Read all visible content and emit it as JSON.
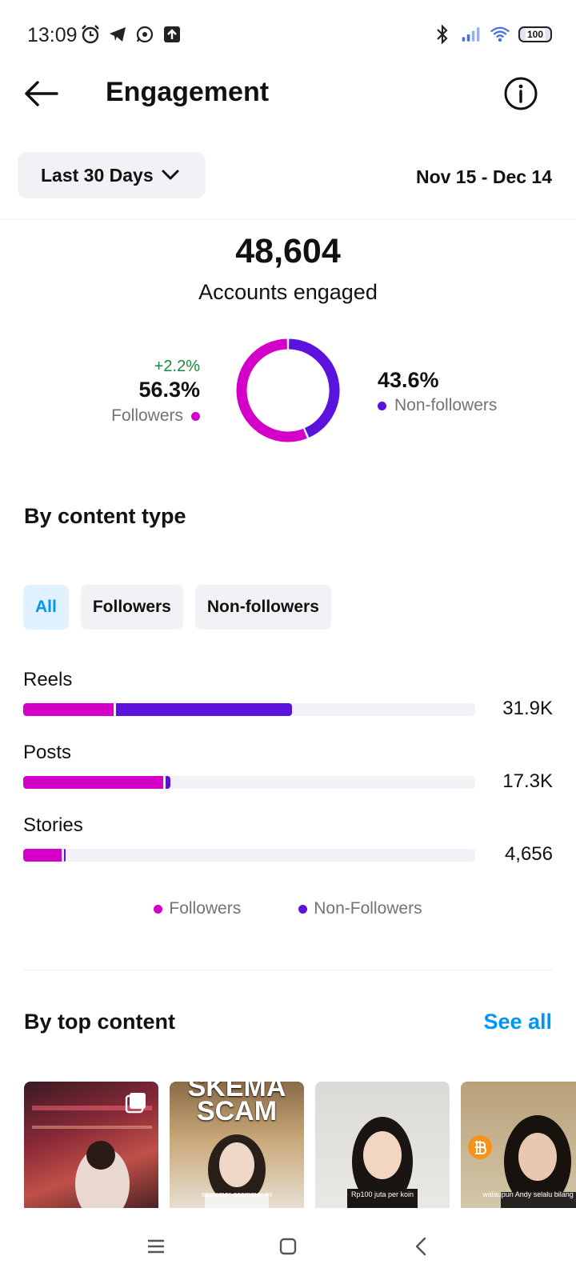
{
  "status_bar": {
    "time": "13:09",
    "battery": "100",
    "icons": [
      "alarm-icon",
      "telegram-icon",
      "whatsapp-icon",
      "upload-icon",
      "bluetooth-icon",
      "signal-icon",
      "wifi-icon",
      "battery-icon"
    ]
  },
  "header": {
    "title": "Engagement",
    "back_icon": "arrow-left-icon",
    "info_icon": "info-icon"
  },
  "filter": {
    "range_label": "Last 30 Days",
    "date_range": "Nov 15 - Dec 14"
  },
  "summary": {
    "total": "48,604",
    "total_label": "Accounts engaged",
    "followers_change": "+2.2%",
    "followers_pct": "56.3%",
    "followers_label": "Followers",
    "nonfollowers_pct": "43.6%",
    "nonfollowers_label": "Non-followers"
  },
  "colors": {
    "followers": "#d400c9",
    "nonfollowers": "#5a12dc",
    "link": "#0095f6",
    "positive": "#1a8a3a"
  },
  "by_content_type": {
    "title": "By content type",
    "tabs": [
      {
        "label": "All",
        "active": true
      },
      {
        "label": "Followers",
        "active": false
      },
      {
        "label": "Non-followers",
        "active": false
      }
    ],
    "rows": [
      {
        "label": "Reels",
        "value": "31.9K",
        "followers_share": 0.2,
        "nonfollowers_share": 0.39
      },
      {
        "label": "Posts",
        "value": "17.3K",
        "followers_share": 0.31,
        "nonfollowers_share": 0.01
      },
      {
        "label": "Stories",
        "value": "4,656",
        "followers_share": 0.085,
        "nonfollowers_share": 0.002
      }
    ],
    "legend": {
      "followers": "Followers",
      "nonfollowers": "Non-Followers"
    }
  },
  "by_top_content": {
    "title": "By top content",
    "see_all": "See all",
    "thumbnails": [
      {
        "headline": "",
        "caption": ""
      },
      {
        "headline": "SKEMA SCAM",
        "caption": "scammer-scammer ini"
      },
      {
        "headline": "",
        "caption": "Rp100 juta per koin"
      },
      {
        "headline": "",
        "caption": "walaupun Andy selalu bilang"
      }
    ]
  },
  "nav_bar": {
    "menu_icon": "menu-icon",
    "home_icon": "home-square-icon",
    "back_icon": "back-chevron-icon"
  }
}
